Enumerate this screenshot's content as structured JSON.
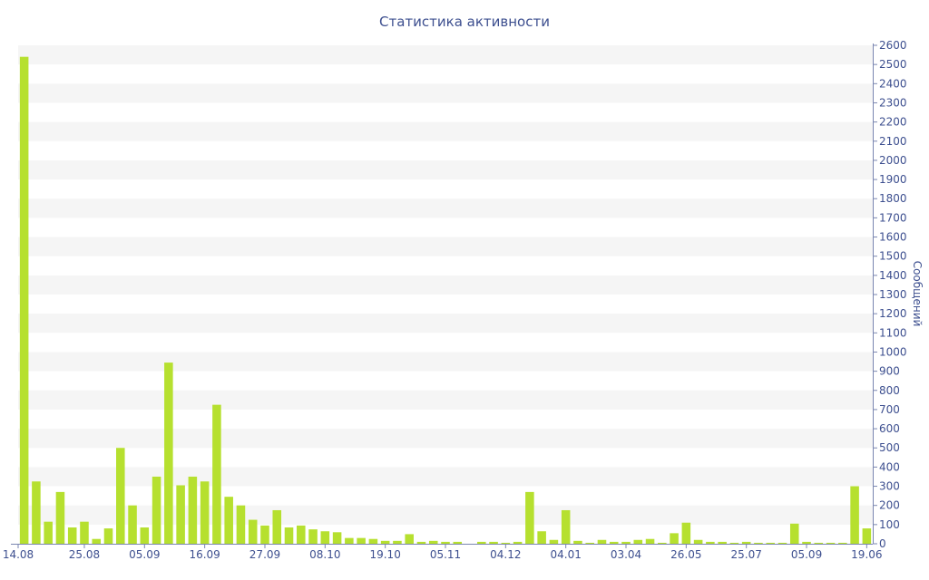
{
  "chart_data": {
    "type": "bar",
    "title": "Статистика активности",
    "ylabel": "Сообщений",
    "xlabel": "",
    "ylim": [
      0,
      2600
    ],
    "y_tick_step": 100,
    "y_axis_position": "right",
    "grid": "horizontal-bands",
    "colors": {
      "bar": "#b6e02f",
      "text": "#3d4f8f",
      "axis": "#7a86b0",
      "band": "#f5f5f5"
    },
    "x_tick_labels": [
      {
        "label": "14.08",
        "index": 0
      },
      {
        "label": "25.08",
        "index": 5
      },
      {
        "label": "05.09",
        "index": 10
      },
      {
        "label": "16.09",
        "index": 15
      },
      {
        "label": "27.09",
        "index": 20
      },
      {
        "label": "08.10",
        "index": 25
      },
      {
        "label": "19.10",
        "index": 30
      },
      {
        "label": "05.11",
        "index": 35
      },
      {
        "label": "04.12",
        "index": 40
      },
      {
        "label": "04.01",
        "index": 45
      },
      {
        "label": "03.04",
        "index": 50
      },
      {
        "label": "26.05",
        "index": 55
      },
      {
        "label": "25.07",
        "index": 60
      },
      {
        "label": "05.09",
        "index": 65
      },
      {
        "label": "19.06",
        "index": 70
      }
    ],
    "values": [
      2540,
      325,
      115,
      270,
      85,
      115,
      25,
      80,
      500,
      200,
      85,
      350,
      945,
      305,
      350,
      325,
      725,
      245,
      200,
      125,
      95,
      175,
      85,
      95,
      75,
      65,
      60,
      30,
      30,
      25,
      15,
      15,
      50,
      10,
      15,
      10,
      10,
      0,
      10,
      10,
      5,
      10,
      270,
      65,
      20,
      175,
      15,
      5,
      20,
      10,
      10,
      20,
      25,
      5,
      55,
      110,
      20,
      10,
      10,
      5,
      10,
      5,
      5,
      5,
      105,
      10,
      5,
      5,
      5,
      300,
      80
    ]
  }
}
